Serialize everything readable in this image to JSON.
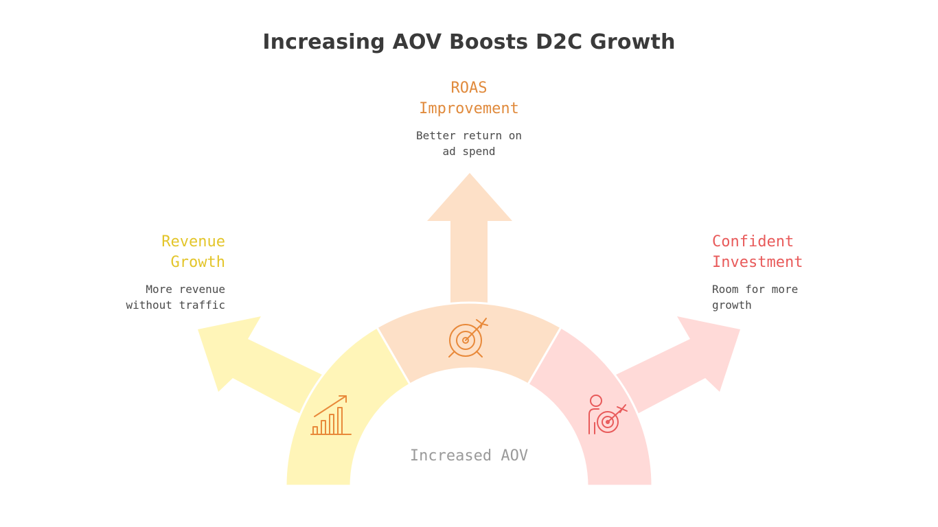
{
  "title": "Increasing AOV Boosts D2C Growth",
  "center_label": "Increased AOV",
  "branches": [
    {
      "id": "revenue",
      "heading_lines": [
        "Revenue",
        "Growth"
      ],
      "desc_lines": [
        "More revenue",
        "without traffic"
      ],
      "color": "#fff5b8",
      "text_color": "#e3c52a",
      "icon": "growth-chart-icon"
    },
    {
      "id": "roas",
      "heading_lines": [
        "ROAS",
        "Improvement"
      ],
      "desc_lines": [
        "Better return on",
        "ad spend"
      ],
      "color": "#fde0c7",
      "text_color": "#e08a3c",
      "icon": "target-arrow-icon"
    },
    {
      "id": "investment",
      "heading_lines": [
        "Confident",
        "Investment"
      ],
      "desc_lines": [
        "Room for more",
        "growth"
      ],
      "color": "#ffdad8",
      "text_color": "#e85a5a",
      "icon": "person-target-icon"
    }
  ],
  "icon_color_warm": "#e8893a",
  "icon_color_red": "#e85a5a"
}
